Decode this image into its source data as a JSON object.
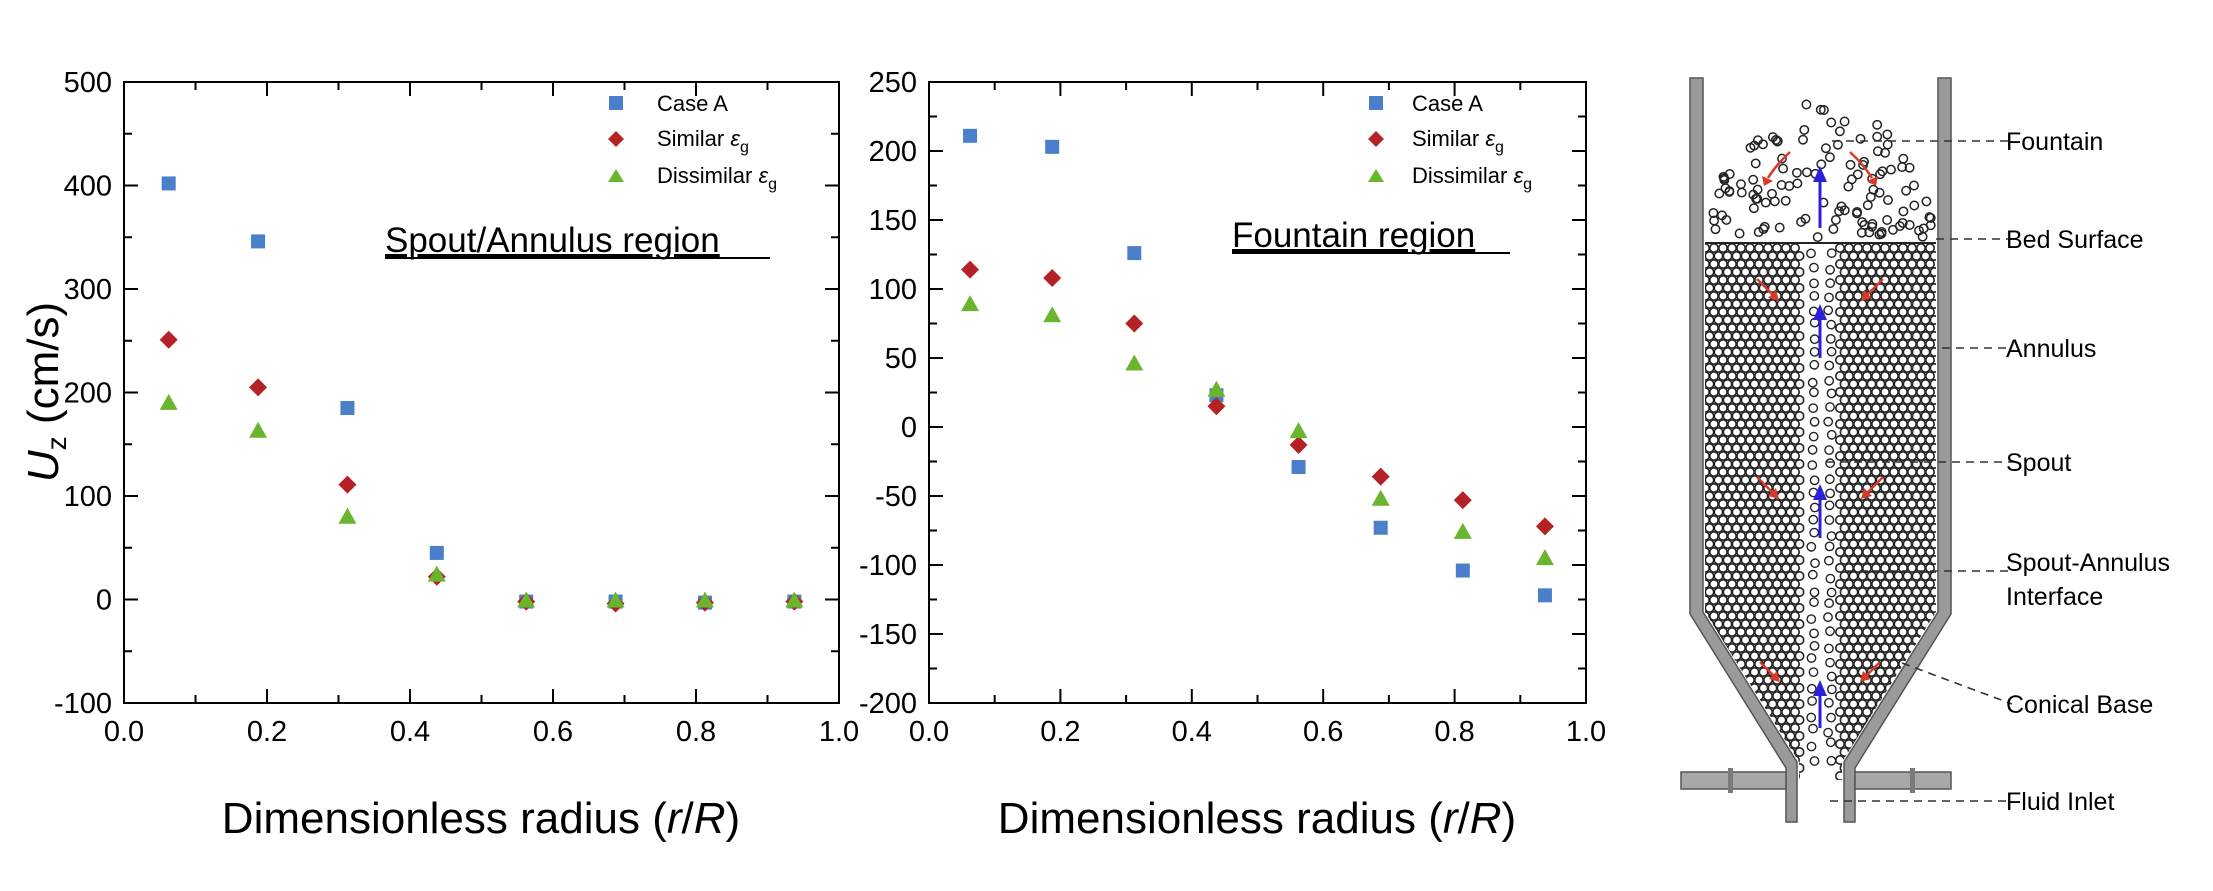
{
  "chart_data": [
    {
      "type": "scatter",
      "panel": "left",
      "annotation": "Spout/Annulus region",
      "ylabel_main": "U",
      "ylabel_sub": "z",
      "ylabel_units": " (cm/s)",
      "xlabel_main": "Dimensionless radius (",
      "xlabel_r": "r",
      "xlabel_slash": "/",
      "xlabel_R": "R",
      "xlabel_close": ")",
      "xlim": [
        0.0,
        1.0
      ],
      "ylim": [
        -100,
        500
      ],
      "xticks": [
        "0.0",
        "0.2",
        "0.4",
        "0.6",
        "0.8",
        "1.0"
      ],
      "yticks": [
        "-100",
        "0",
        "100",
        "200",
        "300",
        "400",
        "500"
      ],
      "grid": false,
      "legend_position": "top-right",
      "x": [
        0.0625,
        0.1875,
        0.3125,
        0.4375,
        0.5625,
        0.6875,
        0.8125,
        0.9375
      ],
      "series": [
        {
          "name": "Case A",
          "marker": "square",
          "color": "#4a7fc9",
          "values": [
            402,
            346,
            185,
            45,
            -2,
            -2,
            -3,
            -2
          ]
        },
        {
          "name": "Similar",
          "name_sym": "ε",
          "name_sub": "g",
          "marker": "diamond",
          "color": "#b52226",
          "values": [
            251,
            205,
            111,
            22,
            -2,
            -4,
            -3,
            -2
          ]
        },
        {
          "name": "Dissimilar",
          "name_sym": "ε",
          "name_sub": "g",
          "marker": "triangle",
          "color": "#6ab52e",
          "values": [
            190,
            163,
            80,
            24,
            -1,
            -1,
            -1,
            -1
          ]
        }
      ]
    },
    {
      "type": "scatter",
      "panel": "middle",
      "annotation": "Fountain region",
      "xlabel_main": "Dimensionless radius (",
      "xlabel_r": "r",
      "xlabel_slash": "/",
      "xlabel_R": "R",
      "xlabel_close": ")",
      "xlim": [
        0.0,
        1.0
      ],
      "ylim": [
        -200,
        250
      ],
      "xticks": [
        "0.0",
        "0.2",
        "0.4",
        "0.6",
        "0.8",
        "1.0"
      ],
      "yticks": [
        "-200",
        "-150",
        "-100",
        "-50",
        "0",
        "50",
        "100",
        "150",
        "200",
        "250"
      ],
      "grid": false,
      "legend_position": "top-right",
      "x": [
        0.0625,
        0.1875,
        0.3125,
        0.4375,
        0.5625,
        0.6875,
        0.8125,
        0.9375
      ],
      "series": [
        {
          "name": "Case A",
          "marker": "square",
          "color": "#4a7fc9",
          "values": [
            211,
            203,
            126,
            23,
            -29,
            -73,
            -104,
            -122
          ]
        },
        {
          "name": "Similar",
          "name_sym": "ε",
          "name_sub": "g",
          "marker": "diamond",
          "color": "#b52226",
          "values": [
            114,
            108,
            75,
            15,
            -13,
            -36,
            -53,
            -72
          ]
        },
        {
          "name": "Dissimilar",
          "name_sym": "ε",
          "name_sub": "g",
          "marker": "triangle",
          "color": "#6ab52e",
          "values": [
            89,
            81,
            46,
            27,
            -3,
            -52,
            -76,
            -95
          ]
        }
      ]
    }
  ],
  "diagram": {
    "labels": {
      "fountain": "Fountain",
      "bed_surface": "Bed Surface",
      "annulus": "Annulus",
      "spout": "Spout",
      "interface_line1": "Spout-Annulus",
      "interface_line2": "Interface",
      "conical_base": "Conical Base",
      "fluid_inlet": "Fluid Inlet"
    },
    "colors": {
      "wall": "#9a9a9a",
      "particle": "#222222",
      "flow_up": "#2a22d8",
      "flow_down": "#d83a2a"
    }
  }
}
